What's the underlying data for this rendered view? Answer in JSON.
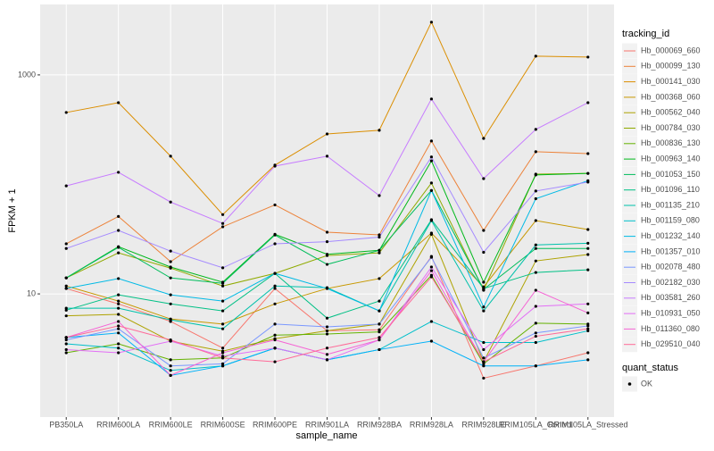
{
  "chart_data": {
    "type": "line",
    "x_label": "sample_name",
    "y_label": "FPKM + 1",
    "categories": [
      "PB350LA",
      "RRIM600LA",
      "RRIM600LE",
      "RRIM600SE",
      "RRIM600PE",
      "RRIM901LA",
      "RRIM928BA",
      "RRIM928LA",
      "RRIM928LE",
      "RRIM105LA_Control",
      "RRIM105LA_Stressed"
    ],
    "ylim": [
      0.75,
      4400
    ],
    "yticks": [
      10,
      1000
    ],
    "log_scale": true,
    "grid": true,
    "point_color": "#000000",
    "legend_title": "tracking_id",
    "shape_legend": {
      "title": "quant_status",
      "labels": [
        "OK"
      ]
    },
    "series": [
      {
        "name": "Hb_000069_660",
        "color": "#F8766D",
        "values": [
          11.2,
          8.1,
          5.6,
          3.2,
          11.2,
          4.6,
          4.7,
          22,
          1.7,
          2.2,
          2.9
        ]
      },
      {
        "name": "Hb_000099_130",
        "color": "#EC8239",
        "values": [
          28.7,
          51,
          19.7,
          41,
          65,
          36.6,
          34.6,
          249,
          38,
          199,
          191
        ]
      },
      {
        "name": "Hb_000141_030",
        "color": "#DB8E00",
        "values": [
          454,
          558,
          181,
          53,
          150,
          289,
          312,
          3034,
          263,
          1483,
          1455
        ]
      },
      {
        "name": "Hb_000368_060",
        "color": "#C79800",
        "values": [
          11.8,
          8.6,
          5.9,
          5.3,
          8.1,
          11.2,
          13.8,
          35.9,
          11.6,
          46.7,
          38.7
        ]
      },
      {
        "name": "Hb_000562_040",
        "color": "#AEA200",
        "values": [
          6.3,
          6.5,
          3.7,
          3.0,
          3.9,
          4.6,
          5.3,
          35,
          2.4,
          20,
          22.9
        ]
      },
      {
        "name": "Hb_000784_030",
        "color": "#8FAA00",
        "values": [
          14,
          23.7,
          17.2,
          11.8,
          15.4,
          22.4,
          23.7,
          103,
          10.8,
          124,
          126
        ]
      },
      {
        "name": "Hb_000836_130",
        "color": "#64B200",
        "values": [
          2.9,
          3.5,
          2.5,
          2.6,
          4.2,
          4.3,
          4.5,
          14.8,
          2.3,
          5.4,
          5.3
        ]
      },
      {
        "name": "Hb_000963_140",
        "color": "#00B81B",
        "values": [
          14,
          27,
          17.6,
          12.8,
          35,
          23,
          25,
          164,
          12.8,
          122,
          126
        ]
      },
      {
        "name": "Hb_001053_150",
        "color": "#00BD5C",
        "values": [
          14,
          26.6,
          14,
          12.5,
          34.5,
          18.6,
          25,
          88,
          11,
          26,
          26
        ]
      },
      {
        "name": "Hb_001096_110",
        "color": "#00C085",
        "values": [
          7.1,
          9.8,
          8.1,
          7.0,
          15.4,
          6.0,
          8.6,
          47.6,
          11.2,
          15.7,
          16.6
        ]
      },
      {
        "name": "Hb_001135_210",
        "color": "#00C1AB",
        "values": [
          7.4,
          7.4,
          5.8,
          4.8,
          11.8,
          11.4,
          7.0,
          46.7,
          7.0,
          28,
          29
        ]
      },
      {
        "name": "Hb_001159_080",
        "color": "#00BFCA",
        "values": [
          3.5,
          3.2,
          2.0,
          2.2,
          3.2,
          2.5,
          3.1,
          5.6,
          3.6,
          3.6,
          4.6
        ]
      },
      {
        "name": "Hb_001232_140",
        "color": "#00BAE5",
        "values": [
          11.2,
          13.8,
          9.8,
          8.6,
          15.4,
          11.2,
          7.0,
          88,
          7.6,
          74,
          108
        ]
      },
      {
        "name": "Hb_001357_010",
        "color": "#00B1F8",
        "values": [
          4.0,
          4.4,
          1.8,
          2.2,
          3.2,
          2.5,
          3.1,
          3.7,
          2.2,
          2.2,
          2.5
        ]
      },
      {
        "name": "Hb_002078_480",
        "color": "#7997FF",
        "values": [
          3.8,
          4.8,
          2.2,
          2.3,
          5.3,
          5.0,
          5.3,
          21.6,
          2.6,
          4.4,
          5.1
        ]
      },
      {
        "name": "Hb_002182_030",
        "color": "#A58AFF",
        "values": [
          26,
          38,
          24.6,
          17.3,
          28.7,
          30,
          33,
          178,
          24,
          87,
          105
        ]
      },
      {
        "name": "Hb_003581_260",
        "color": "#C77CFF",
        "values": [
          97,
          129,
          69,
          44,
          147,
          181,
          79,
          603,
          113,
          318,
          558
        ]
      },
      {
        "name": "Hb_010931_050",
        "color": "#E36EF6",
        "values": [
          3.1,
          2.9,
          3.7,
          2.7,
          3.2,
          2.5,
          3.8,
          17.6,
          3.1,
          7.7,
          8.1
        ]
      },
      {
        "name": "Hb_011360_080",
        "color": "#F564D5",
        "values": [
          4.0,
          5.6,
          1.8,
          2.9,
          3.8,
          2.8,
          3.8,
          16.3,
          2.4,
          10.8,
          6.7
        ]
      },
      {
        "name": "Hb_029510_040",
        "color": "#FF6A98",
        "values": [
          4.0,
          5.1,
          3.8,
          2.6,
          2.4,
          3.2,
          4.0,
          14.3,
          2.4,
          4.1,
          4.8
        ]
      }
    ]
  }
}
